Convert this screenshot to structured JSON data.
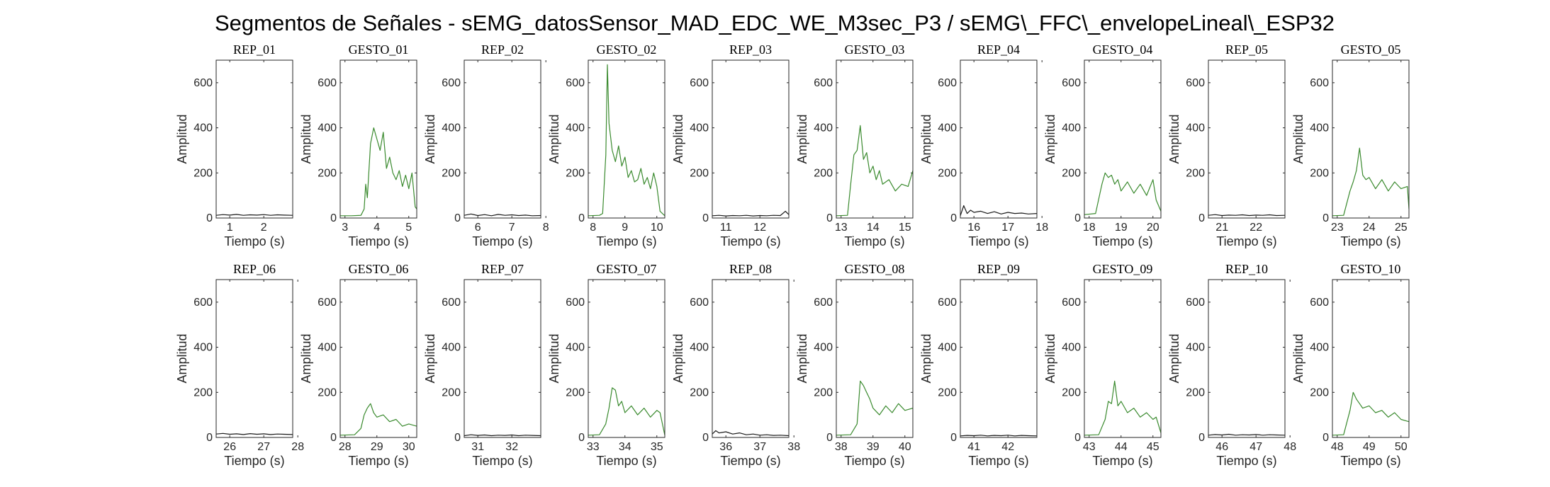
{
  "figure_title": "Segmentos de Señales - sEMG_datosSensor_MAD_EDC_WE_M3sec_P3 / sEMG\\_FFC\\_envelopeLineal\\_ESP32",
  "colors": {
    "rep": "#1a1a1a",
    "gesto": "#3a8a2e",
    "axis": "#262626"
  },
  "chart_data": [
    {
      "type": "line",
      "title": "REP_01",
      "xlabel": "Tiempo (s)",
      "ylabel": "Amplitud",
      "xlim": [
        0.6,
        2.85
      ],
      "ylim": [
        0,
        700
      ],
      "xticks": [
        1,
        2
      ],
      "yticks": [
        0,
        200,
        400,
        600
      ],
      "kind": "rep",
      "series": [
        {
          "x": [
            0.6,
            0.8,
            1.0,
            1.2,
            1.4,
            1.6,
            1.8,
            2.0,
            2.2,
            2.4,
            2.6,
            2.85
          ],
          "y": [
            12,
            15,
            13,
            16,
            12,
            14,
            13,
            15,
            12,
            14,
            13,
            12
          ]
        }
      ]
    },
    {
      "type": "line",
      "title": "GESTO_01",
      "xlabel": "Tiempo (s)",
      "ylabel": "Amplitud",
      "xlim": [
        2.85,
        5.25
      ],
      "ylim": [
        0,
        700
      ],
      "xticks": [
        3,
        4,
        5
      ],
      "yticks": [
        0,
        200,
        400,
        600
      ],
      "kind": "gesto",
      "series": [
        {
          "x": [
            2.85,
            3.2,
            3.5,
            3.6,
            3.65,
            3.7,
            3.8,
            3.9,
            4.0,
            4.1,
            4.2,
            4.3,
            4.4,
            4.5,
            4.6,
            4.7,
            4.8,
            4.9,
            5.0,
            5.1,
            5.2,
            5.25
          ],
          "y": [
            10,
            10,
            12,
            40,
            150,
            90,
            330,
            400,
            350,
            300,
            380,
            220,
            270,
            200,
            170,
            210,
            140,
            190,
            130,
            200,
            50,
            40
          ]
        }
      ]
    },
    {
      "type": "line",
      "title": "REP_02",
      "xlabel": "Tiempo (s)",
      "ylabel": "Amplitud",
      "xlim": [
        5.6,
        7.85
      ],
      "ylim": [
        0,
        700
      ],
      "xticks": [
        6,
        7,
        8
      ],
      "yticks": [
        0,
        200,
        400,
        600
      ],
      "kind": "rep",
      "series": [
        {
          "x": [
            5.6,
            5.8,
            6.0,
            6.2,
            6.4,
            6.6,
            6.8,
            7.0,
            7.2,
            7.4,
            7.6,
            7.85
          ],
          "y": [
            12,
            18,
            11,
            15,
            10,
            16,
            12,
            14,
            11,
            13,
            10,
            11
          ]
        }
      ]
    },
    {
      "type": "line",
      "title": "GESTO_02",
      "xlabel": "Tiempo (s)",
      "ylabel": "Amplitud",
      "xlim": [
        7.85,
        10.25
      ],
      "ylim": [
        0,
        700
      ],
      "xticks": [
        8,
        9,
        10
      ],
      "yticks": [
        0,
        200,
        400,
        600
      ],
      "kind": "gesto",
      "series": [
        {
          "x": [
            7.85,
            8.2,
            8.3,
            8.4,
            8.45,
            8.5,
            8.6,
            8.7,
            8.8,
            8.9,
            9.0,
            9.1,
            9.2,
            9.3,
            9.4,
            9.5,
            9.6,
            9.7,
            9.8,
            9.9,
            10.0,
            10.1,
            10.25
          ],
          "y": [
            10,
            12,
            20,
            280,
            680,
            420,
            300,
            250,
            320,
            230,
            270,
            180,
            210,
            160,
            170,
            220,
            150,
            180,
            130,
            200,
            140,
            30,
            10
          ]
        }
      ]
    },
    {
      "type": "line",
      "title": "REP_03",
      "xlabel": "Tiempo (s)",
      "ylabel": "Amplitud",
      "xlim": [
        10.6,
        12.85
      ],
      "ylim": [
        0,
        700
      ],
      "xticks": [
        11,
        12
      ],
      "yticks": [
        0,
        200,
        400,
        600
      ],
      "kind": "rep",
      "series": [
        {
          "x": [
            10.6,
            10.8,
            11.0,
            11.2,
            11.4,
            11.6,
            11.8,
            12.0,
            12.2,
            12.4,
            12.6,
            12.75,
            12.85
          ],
          "y": [
            10,
            12,
            9,
            11,
            10,
            12,
            9,
            11,
            10,
            12,
            11,
            30,
            15
          ]
        }
      ]
    },
    {
      "type": "line",
      "title": "GESTO_03",
      "xlabel": "Tiempo (s)",
      "ylabel": "Amplitud",
      "xlim": [
        12.85,
        15.25
      ],
      "ylim": [
        0,
        700
      ],
      "xticks": [
        13,
        14,
        15
      ],
      "yticks": [
        0,
        200,
        400,
        600
      ],
      "kind": "gesto",
      "series": [
        {
          "x": [
            12.85,
            13.2,
            13.3,
            13.4,
            13.5,
            13.6,
            13.7,
            13.8,
            13.9,
            14.0,
            14.1,
            14.2,
            14.3,
            14.5,
            14.7,
            14.9,
            15.1,
            15.25
          ],
          "y": [
            10,
            12,
            150,
            280,
            300,
            410,
            260,
            290,
            200,
            230,
            170,
            210,
            150,
            170,
            120,
            150,
            140,
            210
          ]
        }
      ]
    },
    {
      "type": "line",
      "title": "REP_04",
      "xlabel": "Tiempo (s)",
      "ylabel": "Amplitud",
      "xlim": [
        15.6,
        17.85
      ],
      "ylim": [
        0,
        700
      ],
      "xticks": [
        16,
        17,
        18
      ],
      "yticks": [
        0,
        200,
        400,
        600
      ],
      "kind": "rep",
      "series": [
        {
          "x": [
            15.6,
            15.7,
            15.8,
            15.9,
            16.0,
            16.2,
            16.4,
            16.6,
            16.8,
            17.0,
            17.2,
            17.4,
            17.6,
            17.85
          ],
          "y": [
            10,
            55,
            20,
            35,
            25,
            30,
            20,
            28,
            18,
            25,
            20,
            22,
            18,
            20
          ]
        }
      ]
    },
    {
      "type": "line",
      "title": "GESTO_04",
      "xlabel": "Tiempo (s)",
      "ylabel": "Amplitud",
      "xlim": [
        17.85,
        20.25
      ],
      "ylim": [
        0,
        700
      ],
      "xticks": [
        18,
        19,
        20
      ],
      "yticks": [
        0,
        200,
        400,
        600
      ],
      "kind": "gesto",
      "series": [
        {
          "x": [
            17.85,
            18.2,
            18.4,
            18.5,
            18.6,
            18.7,
            18.8,
            18.9,
            19.0,
            19.2,
            19.4,
            19.6,
            19.8,
            20.0,
            20.1,
            20.25
          ],
          "y": [
            15,
            20,
            150,
            200,
            180,
            190,
            150,
            170,
            120,
            160,
            110,
            150,
            100,
            170,
            80,
            30
          ]
        }
      ]
    },
    {
      "type": "line",
      "title": "REP_05",
      "xlabel": "Tiempo (s)",
      "ylabel": "Amplitud",
      "xlim": [
        20.6,
        22.85
      ],
      "ylim": [
        0,
        700
      ],
      "xticks": [
        21,
        22
      ],
      "yticks": [
        0,
        200,
        400,
        600
      ],
      "kind": "rep",
      "series": [
        {
          "x": [
            20.6,
            20.8,
            21.0,
            21.2,
            21.4,
            21.6,
            21.8,
            22.0,
            22.2,
            22.4,
            22.6,
            22.85
          ],
          "y": [
            12,
            15,
            11,
            13,
            12,
            14,
            11,
            13,
            12,
            14,
            11,
            12
          ]
        }
      ]
    },
    {
      "type": "line",
      "title": "GESTO_05",
      "xlabel": "Tiempo (s)",
      "ylabel": "Amplitud",
      "xlim": [
        22.85,
        25.25
      ],
      "ylim": [
        0,
        700
      ],
      "xticks": [
        23,
        24,
        25
      ],
      "yticks": [
        0,
        200,
        400,
        600
      ],
      "kind": "gesto",
      "series": [
        {
          "x": [
            22.85,
            23.2,
            23.4,
            23.5,
            23.6,
            23.7,
            23.8,
            23.9,
            24.0,
            24.2,
            24.4,
            24.6,
            24.8,
            25.0,
            25.2,
            25.25
          ],
          "y": [
            10,
            12,
            120,
            160,
            210,
            310,
            190,
            170,
            180,
            130,
            170,
            120,
            160,
            130,
            140,
            40
          ]
        }
      ]
    },
    {
      "type": "line",
      "title": "REP_06",
      "xlabel": "Tiempo (s)",
      "ylabel": "Amplitud",
      "xlim": [
        25.6,
        27.85
      ],
      "ylim": [
        0,
        700
      ],
      "xticks": [
        26,
        27,
        28
      ],
      "yticks": [
        0,
        200,
        400,
        600
      ],
      "kind": "rep",
      "series": [
        {
          "x": [
            25.6,
            25.8,
            26.0,
            26.2,
            26.4,
            26.6,
            26.8,
            27.0,
            27.2,
            27.4,
            27.6,
            27.85
          ],
          "y": [
            15,
            18,
            14,
            16,
            13,
            17,
            14,
            16,
            13,
            15,
            14,
            13
          ]
        }
      ]
    },
    {
      "type": "line",
      "title": "GESTO_06",
      "xlabel": "Tiempo (s)",
      "ylabel": "Amplitud",
      "xlim": [
        27.85,
        30.25
      ],
      "ylim": [
        0,
        700
      ],
      "xticks": [
        28,
        29,
        30
      ],
      "yticks": [
        0,
        200,
        400,
        600
      ],
      "kind": "gesto",
      "series": [
        {
          "x": [
            27.85,
            28.3,
            28.5,
            28.6,
            28.7,
            28.8,
            28.9,
            29.0,
            29.2,
            29.4,
            29.6,
            29.8,
            30.0,
            30.25
          ],
          "y": [
            10,
            12,
            40,
            100,
            130,
            150,
            110,
            90,
            100,
            70,
            80,
            50,
            60,
            50
          ]
        }
      ]
    },
    {
      "type": "line",
      "title": "REP_07",
      "xlabel": "Tiempo (s)",
      "ylabel": "Amplitud",
      "xlim": [
        30.6,
        32.85
      ],
      "ylim": [
        0,
        700
      ],
      "xticks": [
        31,
        32
      ],
      "yticks": [
        0,
        200,
        400,
        600
      ],
      "kind": "rep",
      "series": [
        {
          "x": [
            30.6,
            30.8,
            31.0,
            31.2,
            31.4,
            31.6,
            31.8,
            32.0,
            32.2,
            32.4,
            32.6,
            32.85
          ],
          "y": [
            8,
            12,
            9,
            11,
            8,
            10,
            9,
            11,
            8,
            10,
            9,
            8
          ]
        }
      ]
    },
    {
      "type": "line",
      "title": "GESTO_07",
      "xlabel": "Tiempo (s)",
      "ylabel": "Amplitud",
      "xlim": [
        32.85,
        35.25
      ],
      "ylim": [
        0,
        700
      ],
      "xticks": [
        33,
        34,
        35
      ],
      "yticks": [
        0,
        200,
        400,
        600
      ],
      "kind": "gesto",
      "series": [
        {
          "x": [
            32.85,
            33.2,
            33.4,
            33.5,
            33.6,
            33.7,
            33.8,
            33.9,
            34.0,
            34.2,
            34.4,
            34.6,
            34.8,
            35.0,
            35.1,
            35.25
          ],
          "y": [
            10,
            12,
            60,
            130,
            220,
            210,
            140,
            160,
            110,
            140,
            100,
            130,
            90,
            120,
            110,
            10
          ]
        }
      ]
    },
    {
      "type": "line",
      "title": "REP_08",
      "xlabel": "Tiempo (s)",
      "ylabel": "Amplitud",
      "xlim": [
        35.6,
        37.85
      ],
      "ylim": [
        0,
        700
      ],
      "xticks": [
        36,
        37,
        38
      ],
      "yticks": [
        0,
        200,
        400,
        600
      ],
      "kind": "rep",
      "series": [
        {
          "x": [
            35.6,
            35.7,
            35.8,
            36.0,
            36.2,
            36.4,
            36.6,
            36.8,
            37.0,
            37.2,
            37.4,
            37.6,
            37.85
          ],
          "y": [
            15,
            30,
            20,
            25,
            15,
            20,
            12,
            15,
            10,
            12,
            9,
            10,
            8
          ]
        }
      ]
    },
    {
      "type": "line",
      "title": "GESTO_08",
      "xlabel": "Tiempo (s)",
      "ylabel": "Amplitud",
      "xlim": [
        37.85,
        40.25
      ],
      "ylim": [
        0,
        700
      ],
      "xticks": [
        38,
        39,
        40
      ],
      "yticks": [
        0,
        200,
        400,
        600
      ],
      "kind": "gesto",
      "series": [
        {
          "x": [
            37.85,
            38.3,
            38.5,
            38.6,
            38.7,
            38.8,
            38.9,
            39.0,
            39.2,
            39.4,
            39.6,
            39.8,
            40.0,
            40.25
          ],
          "y": [
            10,
            12,
            60,
            250,
            230,
            200,
            170,
            130,
            100,
            140,
            110,
            150,
            120,
            130
          ]
        }
      ]
    },
    {
      "type": "line",
      "title": "REP_09",
      "xlabel": "Tiempo (s)",
      "ylabel": "Amplitud",
      "xlim": [
        40.6,
        42.85
      ],
      "ylim": [
        0,
        700
      ],
      "xticks": [
        41,
        42
      ],
      "yticks": [
        0,
        200,
        400,
        600
      ],
      "kind": "rep",
      "series": [
        {
          "x": [
            40.6,
            40.8,
            41.0,
            41.2,
            41.4,
            41.6,
            41.8,
            42.0,
            42.2,
            42.4,
            42.6,
            42.85
          ],
          "y": [
            7,
            9,
            8,
            10,
            7,
            9,
            8,
            10,
            7,
            9,
            8,
            7
          ]
        }
      ]
    },
    {
      "type": "line",
      "title": "GESTO_09",
      "xlabel": "Tiempo (s)",
      "ylabel": "Amplitud",
      "xlim": [
        42.85,
        45.25
      ],
      "ylim": [
        0,
        700
      ],
      "xticks": [
        43,
        44,
        45
      ],
      "yticks": [
        0,
        200,
        400,
        600
      ],
      "kind": "gesto",
      "series": [
        {
          "x": [
            42.85,
            43.3,
            43.5,
            43.6,
            43.7,
            43.8,
            43.9,
            44.0,
            44.2,
            44.4,
            44.6,
            44.8,
            45.0,
            45.1,
            45.25
          ],
          "y": [
            10,
            12,
            80,
            160,
            150,
            250,
            140,
            160,
            110,
            130,
            90,
            110,
            80,
            90,
            20
          ]
        }
      ]
    },
    {
      "type": "line",
      "title": "REP_10",
      "xlabel": "Tiempo (s)",
      "ylabel": "Amplitud",
      "xlim": [
        45.6,
        47.85
      ],
      "ylim": [
        0,
        700
      ],
      "xticks": [
        46,
        47,
        48
      ],
      "yticks": [
        0,
        200,
        400,
        600
      ],
      "kind": "rep",
      "series": [
        {
          "x": [
            45.6,
            45.8,
            46.0,
            46.2,
            46.4,
            46.6,
            46.8,
            47.0,
            47.2,
            47.4,
            47.6,
            47.85
          ],
          "y": [
            10,
            13,
            11,
            14,
            10,
            12,
            11,
            13,
            10,
            12,
            11,
            10
          ]
        }
      ]
    },
    {
      "type": "line",
      "title": "GESTO_10",
      "xlabel": "Tiempo (s)",
      "ylabel": "Amplitud",
      "xlim": [
        47.85,
        50.25
      ],
      "ylim": [
        0,
        700
      ],
      "xticks": [
        48,
        49,
        50
      ],
      "yticks": [
        0,
        200,
        400,
        600
      ],
      "kind": "gesto",
      "series": [
        {
          "x": [
            47.85,
            48.2,
            48.4,
            48.5,
            48.6,
            48.7,
            48.8,
            49.0,
            49.2,
            49.4,
            49.6,
            49.8,
            50.0,
            50.25
          ],
          "y": [
            10,
            12,
            120,
            200,
            170,
            150,
            130,
            140,
            110,
            120,
            90,
            110,
            80,
            70
          ]
        }
      ]
    }
  ]
}
